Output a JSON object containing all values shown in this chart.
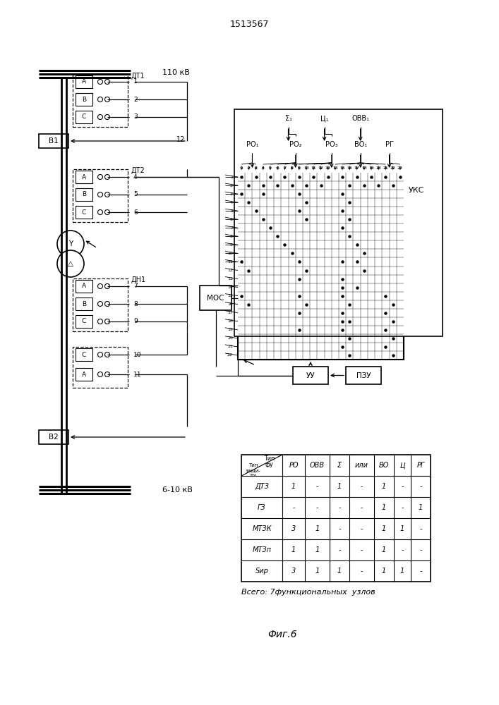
{
  "title": "1513567",
  "fig_label": "Фиг.6",
  "summary_text": "Всего: 7функциональных  узлов",
  "voltage_top": "110 кВ",
  "voltage_bot": "6-10 кВ",
  "table_headers_top": [
    "Тип\nФУ",
    "РО",
    "ОВВ",
    "Σ",
    "или",
    "ВО",
    "Ц",
    "РГ"
  ],
  "table_rows": [
    [
      "ДТЗ",
      "1",
      "-",
      "1",
      "-",
      "1",
      "-",
      "-"
    ],
    [
      "ГЗ",
      "-",
      "-",
      "-",
      "-",
      "1",
      "-",
      "1"
    ],
    [
      "МТЗК",
      "3",
      "1",
      "-",
      "-",
      "1",
      "1",
      "-"
    ],
    [
      "МТЗп",
      "1",
      "1",
      "-",
      "-",
      "1",
      "-",
      "-"
    ],
    [
      "Sир",
      "3",
      "1",
      "1",
      "-",
      "1",
      "1",
      "-"
    ]
  ],
  "bg_color": "#ffffff"
}
